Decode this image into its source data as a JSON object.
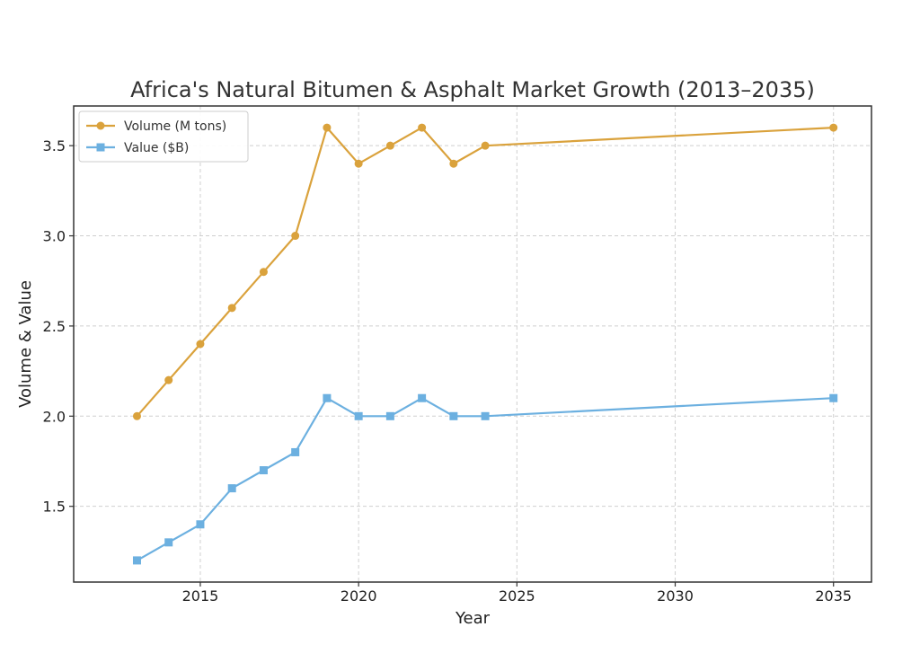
{
  "chart_data": {
    "type": "line",
    "title": "Africa's Natural Bitumen & Asphalt Market Growth (2013–2035)",
    "xlabel": "Year",
    "ylabel": "Volume & Value",
    "xlim": [
      2011,
      2036.2
    ],
    "ylim": [
      1.08,
      3.72
    ],
    "x_ticks": [
      2015,
      2020,
      2025,
      2030,
      2035
    ],
    "y_ticks": [
      1.5,
      2.0,
      2.5,
      3.0,
      3.5
    ],
    "y_tick_labels": [
      "1.5",
      "2.0",
      "2.5",
      "3.0",
      "3.5"
    ],
    "grid": true,
    "legend_position": "top-left",
    "series": [
      {
        "name": "Volume (M tons)",
        "color": "#daa23c",
        "marker": "circle",
        "x": [
          2013,
          2014,
          2015,
          2016,
          2017,
          2018,
          2019,
          2020,
          2021,
          2022,
          2023,
          2024,
          2035
        ],
        "values": [
          2.0,
          2.2,
          2.4,
          2.6,
          2.8,
          3.0,
          3.6,
          3.4,
          3.5,
          3.6,
          3.4,
          3.5,
          3.6
        ]
      },
      {
        "name": "Value ($B)",
        "color": "#6cb0e0",
        "marker": "square",
        "x": [
          2013,
          2014,
          2015,
          2016,
          2017,
          2018,
          2019,
          2020,
          2021,
          2022,
          2023,
          2024,
          2035
        ],
        "values": [
          1.2,
          1.3,
          1.4,
          1.6,
          1.7,
          1.8,
          2.1,
          2.0,
          2.0,
          2.1,
          2.0,
          2.0,
          2.1
        ]
      }
    ]
  }
}
